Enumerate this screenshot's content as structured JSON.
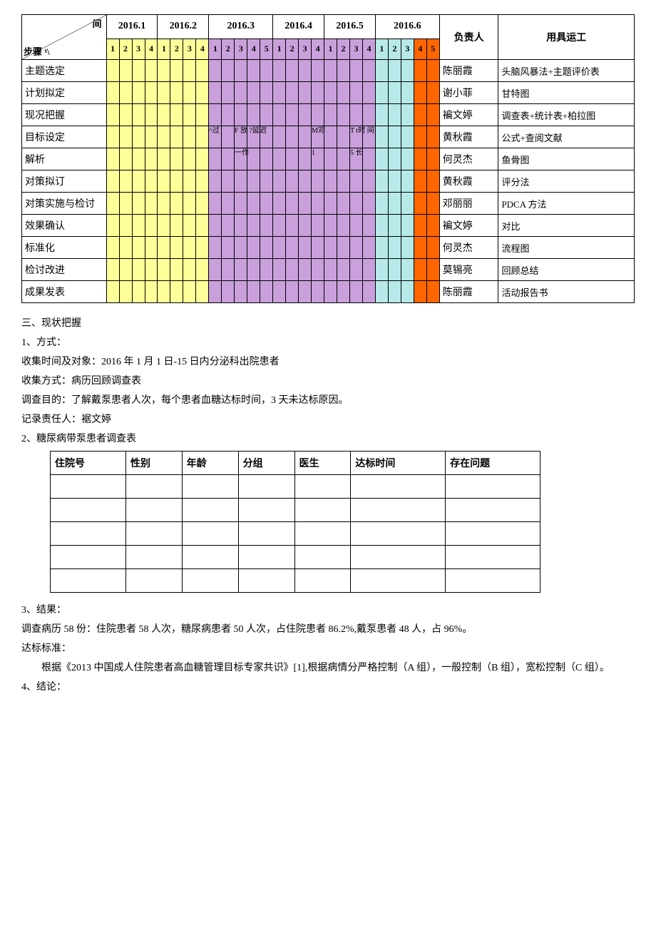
{
  "colors": {
    "yellow": "#ffff99",
    "purple": "#c9a0dc",
    "cyan": "#b7e9e9",
    "orange": "#ff6600",
    "border": "#000000",
    "bg": "#ffffff"
  },
  "gantt": {
    "months": [
      {
        "label": "2016.1",
        "weeks": [
          "1",
          "2",
          "3",
          "4"
        ]
      },
      {
        "label": "2016.2",
        "weeks": [
          "1",
          "2",
          "3",
          "4"
        ]
      },
      {
        "label": "2016.3",
        "weeks": [
          "1",
          "2",
          "3",
          "4",
          "5"
        ]
      },
      {
        "label": "2016.4",
        "weeks": [
          "1",
          "2",
          "3",
          "4"
        ]
      },
      {
        "label": "2016.5",
        "weeks": [
          "1",
          "2",
          "3",
          "4"
        ]
      },
      {
        "label": "2016.6",
        "weeks": [
          "1",
          "2",
          "3",
          "4",
          "5"
        ]
      }
    ],
    "total_weeks": 26,
    "yellow_range": [
      0,
      8
    ],
    "purple_range": [
      8,
      21
    ],
    "cyan_range": [
      21,
      24
    ],
    "orange_range": [
      24,
      26
    ],
    "corner_top": "间",
    "corner_bottom": "步骤 ˣ\\",
    "person_header": "负责人",
    "tool_header": "用具运工",
    "rows": [
      {
        "step": "主题选定",
        "person": "陈丽霞",
        "tool": "头脑风暴法+主题评价表"
      },
      {
        "step": "计划拟定",
        "person": "谢小菲",
        "tool": "甘特图"
      },
      {
        "step": "现况把握",
        "person": "褊文婷",
        "tool": "调查表+统计表+柏拉图"
      },
      {
        "step": "目标设定",
        "person": "黄秋霞",
        "tool": "公式+查阅文献"
      },
      {
        "step": "解析",
        "person": "何灵杰",
        "tool": "鱼骨图"
      },
      {
        "step": "对策拟订",
        "person": "黄秋霞",
        "tool": "评分法"
      },
      {
        "step": "对策实施与检讨",
        "person": "邓丽丽",
        "tool": "PDCA 方法"
      },
      {
        "step": "效果确认",
        "person": "褊文婷",
        "tool": "对比"
      },
      {
        "step": "标准化",
        "person": "何灵杰",
        "tool": "流程图"
      },
      {
        "step": "检讨改进",
        "person": "莫锡亮",
        "tool": "回顾总结"
      },
      {
        "step": "成果发表",
        "person": "陈丽霞",
        "tool": "活动报告书"
      }
    ],
    "annotations": [
      {
        "text": "^过",
        "row": 3,
        "col": 8
      },
      {
        "text": "F 放 ?延迟",
        "row": 3,
        "col": 10
      },
      {
        "text": "一作",
        "row": 4,
        "col": 10
      },
      {
        "text": "M邓",
        "row": 3,
        "col": 16
      },
      {
        "text": "1",
        "row": 4,
        "col": 16
      },
      {
        "text": "T t时 间",
        "row": 3,
        "col": 19
      },
      {
        "text": "5 长",
        "row": 4,
        "col": 19
      }
    ]
  },
  "section3_title": "三、现状把握",
  "s3_1": "1、方式：",
  "s3_1a": "收集时间及对象：2016 年 1 月 1 日-15 日内分泌科出院患者",
  "s3_1b": "收集方式：病历回顾调查表",
  "s3_1c": "调查目的：了解戴泵患者人次，每个患者血糖达标时间，3 天未达标原因。",
  "s3_1d": "记录责任人：裾文婷",
  "s3_2": "2、糖尿病带泵患者调查表",
  "survey_columns": [
    "住院号",
    "性别",
    "年龄",
    "分组",
    "医生",
    "达标时间",
    "存在问题"
  ],
  "survey_blank_rows": 5,
  "s3_3": "3、结果：",
  "s3_3a": "调查病历 58 份：住院患者 58 人次，糖尿病患者 50 人次，占住院患者 86.2%,戴泵患者 48 人，占 96%。",
  "s3_3b": "达标标准：",
  "s3_3c": "根据《2013 中国成人住院患者高血糖管理目标专家共识》[1],根据病情分严格控制（A 组），一般控制（B 组），宽松控制（C 组）。",
  "s3_4": "4、结论："
}
